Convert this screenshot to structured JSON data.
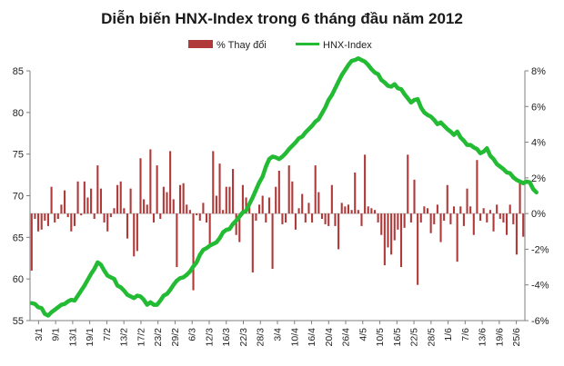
{
  "chart_data": {
    "type": "bar+line",
    "title": "Diễn biến HNX-Index trong 6 tháng đầu năm 2012",
    "legend": [
      "% Thay đổi",
      "HNX-Index"
    ],
    "legend_position": "top",
    "colors": {
      "bar": "#b03a3a",
      "line": "#22bb33",
      "axis": "#7f7f7f"
    },
    "left_axis": {
      "ylim": [
        55,
        85
      ],
      "ticks": [
        "55",
        "60",
        "65",
        "70",
        "75",
        "80",
        "85"
      ]
    },
    "right_axis": {
      "ylim": [
        -6,
        8
      ],
      "ticks": [
        "-6%",
        "-4%",
        "-2%",
        "0%",
        "2%",
        "4%",
        "6%",
        "8%"
      ]
    },
    "x_tick_labels": [
      "3/1",
      "9/1",
      "13/1",
      "19/1",
      "7/2",
      "13/2",
      "17/2",
      "23/2",
      "29/2",
      "6/3",
      "12/3",
      "16/3",
      "22/3",
      "28/3",
      "3/4",
      "10/4",
      "16/4",
      "20/4",
      "26/4",
      "4/5",
      "10/5",
      "16/5",
      "22/5",
      "28/5",
      "1/6",
      "7/6",
      "13/6",
      "19/6",
      "25/6"
    ],
    "series": [
      {
        "name": "% Thay đổi",
        "kind": "bar",
        "axis": "right",
        "values": [
          -3.2,
          -0.3,
          -1.0,
          -0.9,
          -0.4,
          -0.7,
          1.5,
          -0.5,
          -0.3,
          0.5,
          1.3,
          -0.2,
          -1.0,
          -0.7,
          1.8,
          -0.1,
          1.8,
          0.9,
          1.4,
          -0.3,
          2.7,
          1.4,
          -0.5,
          -1.0,
          -0.2,
          0.3,
          1.6,
          1.8,
          0.3,
          -1.4,
          1.4,
          -2.4,
          -2.1,
          3.1,
          0.8,
          0.5,
          3.6,
          -0.5,
          2.7,
          -0.3,
          1.5,
          1.2,
          3.5,
          0.8,
          -3.0,
          1.6,
          1.7,
          0.5,
          0.2,
          -4.3,
          -0.1,
          -0.4,
          0.6,
          -0.5,
          -1.7,
          3.5,
          1.0,
          2.8,
          0.2,
          1.5,
          1.5,
          2.5,
          -1.2,
          -1.6,
          1.6,
          0.9,
          0.6,
          -3.3,
          -0.4,
          0.5,
          1.0,
          -0.5,
          0.9,
          -3.1,
          1.5,
          2.4,
          -0.6,
          -0.5,
          2.7,
          1.8,
          -0.9,
          0.3,
          1.1,
          -0.5,
          0.6,
          -0.5,
          2.7,
          1.2,
          -0.3,
          -0.6,
          -0.7,
          1.6,
          -0.7,
          -2.0,
          0.6,
          0.4,
          0.5,
          0.2,
          2.3,
          0.2,
          -0.7,
          3.3,
          0.4,
          0.3,
          0.2,
          -0.5,
          -1.2,
          -2.9,
          -1.9,
          -2.3,
          -1.5,
          -0.9,
          -3.0,
          -0.8,
          3.3,
          -0.5,
          1.9,
          -4.0,
          -0.5,
          0.4,
          0.3,
          -1.1,
          -0.6,
          0.5,
          -1.6,
          -0.4,
          1.6,
          -0.6,
          0.4,
          -2.7,
          0.4,
          -0.7,
          1.4,
          0.4,
          -1.2,
          3.0,
          -0.4,
          0.3,
          -0.5,
          0.2,
          -1.0,
          0.5,
          -0.3,
          -0.5,
          -1.2,
          0.5,
          -0.6,
          -2.3,
          1.7,
          -1.3
        ]
      },
      {
        "name": "HNX-Index",
        "kind": "line",
        "axis": "left",
        "values": [
          57.1,
          57.0,
          56.6,
          56.5,
          55.8,
          55.6,
          56.0,
          56.3,
          56.6,
          56.9,
          57.0,
          57.3,
          57.5,
          57.4,
          58.0,
          58.6,
          59.2,
          59.9,
          60.6,
          61.2,
          62.0,
          61.7,
          61.0,
          60.4,
          60.2,
          60.0,
          59.2,
          59.0,
          58.6,
          58.1,
          57.9,
          57.7,
          58.0,
          57.9,
          57.5,
          56.9,
          57.2,
          56.9,
          56.9,
          57.4,
          58.0,
          58.2,
          58.7,
          59.3,
          59.8,
          60.1,
          60.2,
          60.5,
          60.9,
          61.5,
          62.0,
          62.9,
          63.5,
          63.7,
          64.0,
          64.2,
          64.4,
          64.9,
          65.6,
          65.9,
          66.0,
          66.6,
          67.0,
          67.5,
          68.0,
          68.2,
          69.0,
          69.8,
          70.7,
          71.6,
          72.3,
          73.5,
          74.4,
          74.7,
          74.6,
          74.4,
          74.7,
          75.1,
          75.6,
          76.0,
          76.4,
          76.9,
          77.1,
          77.6,
          78.0,
          78.4,
          78.9,
          79.2,
          79.9,
          80.6,
          81.5,
          82.1,
          82.9,
          83.7,
          84.5,
          85.1,
          85.7,
          86.2,
          86.3,
          86.5,
          86.3,
          86.1,
          85.7,
          85.2,
          84.8,
          84.6,
          83.9,
          83.6,
          83.2,
          83.1,
          83.4,
          82.9,
          82.8,
          82.2,
          81.7,
          81.2,
          81.5,
          81.6,
          80.6,
          80.0,
          79.7,
          79.5,
          79.1,
          78.6,
          78.8,
          78.4,
          78.0,
          77.7,
          77.3,
          77.7,
          77.0,
          76.6,
          76.1,
          76.1,
          75.8,
          75.6,
          75.1,
          75.3,
          75.7,
          74.8,
          74.4,
          73.8,
          73.5,
          73.2,
          72.8,
          72.7,
          72.2,
          71.9,
          71.7,
          71.5,
          71.7,
          71.6,
          70.8,
          70.4
        ]
      }
    ]
  }
}
